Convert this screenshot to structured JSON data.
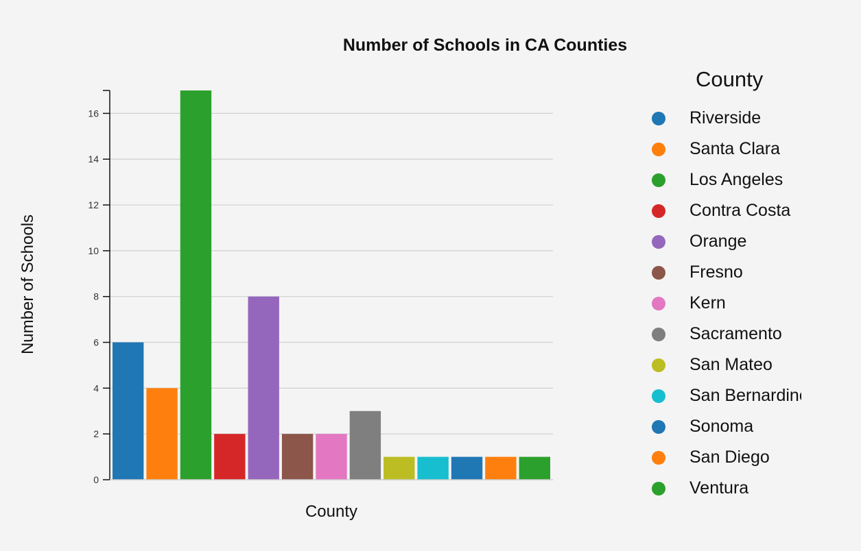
{
  "chart_data": {
    "type": "bar",
    "title": "Number of Schools in CA Counties",
    "xlabel": "County",
    "ylabel": "Number of Schools",
    "ylim": [
      0,
      17
    ],
    "yticks": [
      0,
      2,
      4,
      6,
      8,
      10,
      12,
      14,
      16
    ],
    "grid": true,
    "legend_title": "County",
    "legend_position": "right",
    "categories": [
      "Riverside",
      "Santa Clara",
      "Los Angeles",
      "Contra Costa",
      "Orange",
      "Fresno",
      "Kern",
      "Sacramento",
      "San Mateo",
      "San Bernardino",
      "Sonoma",
      "San Diego",
      "Ventura"
    ],
    "values": [
      6,
      4,
      17,
      2,
      8,
      2,
      2,
      3,
      1,
      1,
      1,
      1,
      1
    ],
    "colors": [
      "#1f77b4",
      "#ff7f0e",
      "#2ca02c",
      "#d62728",
      "#9467bd",
      "#8c564b",
      "#e377c2",
      "#7f7f7f",
      "#bcbd22",
      "#17becf",
      "#1f77b4",
      "#ff7f0e",
      "#2ca02c"
    ]
  }
}
